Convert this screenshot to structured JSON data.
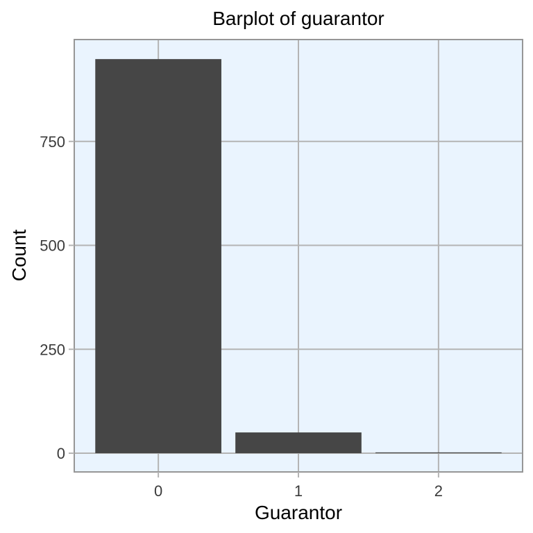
{
  "chart_data": {
    "type": "bar",
    "title": "Barplot of guarantor",
    "xlabel": "Guarantor",
    "ylabel": "Count",
    "categories": [
      "0",
      "1",
      "2"
    ],
    "values": [
      948,
      50,
      2
    ],
    "ylim": [
      -45,
      995
    ],
    "yticks": [
      0,
      250,
      500,
      750
    ],
    "ytick_labels": [
      "0",
      "250",
      "500",
      "750"
    ],
    "grid": true,
    "legend": "none",
    "colors": {
      "bar": "#464646",
      "panel_background": "#eaf4fe",
      "grid": "#b4b4b4",
      "panel_border": "#969696"
    }
  }
}
